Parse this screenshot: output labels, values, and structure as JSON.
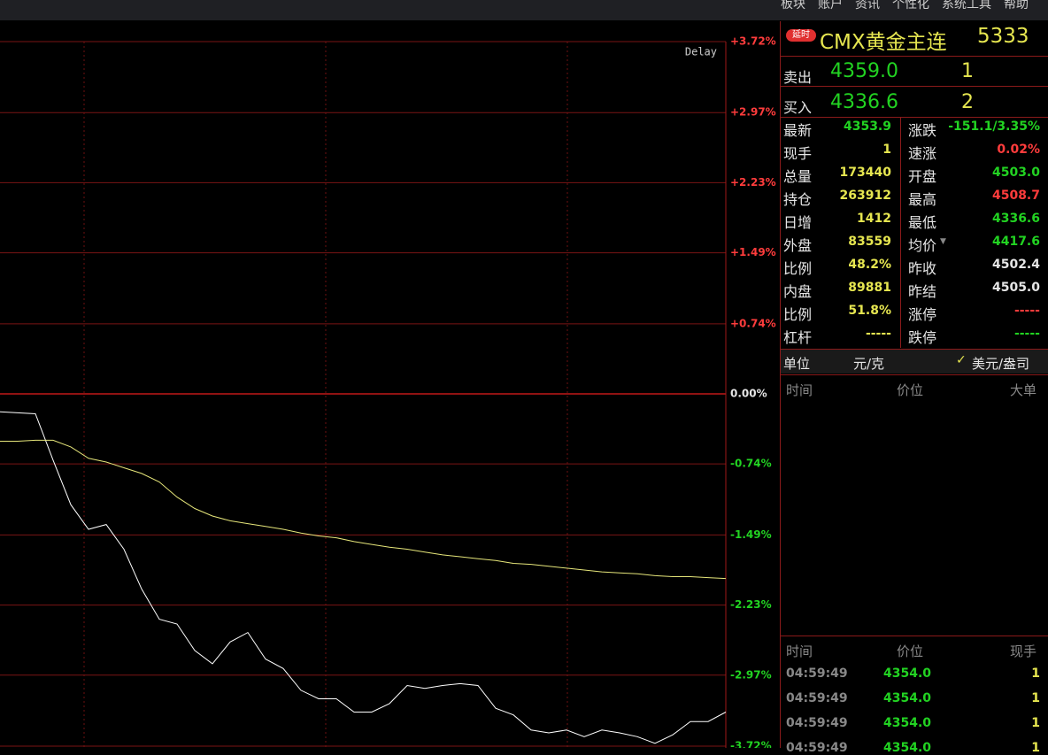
{
  "menu": [
    "板块",
    "账户",
    "资讯",
    "个性化",
    "系统工具",
    "帮助"
  ],
  "chart_data": {
    "type": "line",
    "annotation": "Delay",
    "ylim": [
      -3.72,
      3.72
    ],
    "grid": true,
    "yticks": [
      {
        "value": 3.72,
        "label": "+3.72%"
      },
      {
        "value": 2.97,
        "label": "+2.97%"
      },
      {
        "value": 2.23,
        "label": "+2.23%"
      },
      {
        "value": 1.49,
        "label": "+1.49%"
      },
      {
        "value": 0.74,
        "label": "+0.74%"
      },
      {
        "value": 0,
        "label": "0.00%"
      },
      {
        "value": -0.74,
        "label": "-0.74%"
      },
      {
        "value": -1.49,
        "label": "-1.49%"
      },
      {
        "value": -2.23,
        "label": "-2.23%"
      },
      {
        "value": -2.97,
        "label": "-2.97%"
      },
      {
        "value": -3.72,
        "label": "-3.72%"
      }
    ],
    "series": [
      {
        "color": "#ffffff",
        "values": [
          -0.19,
          -0.2,
          -0.21,
          -0.7,
          -1.17,
          -1.43,
          -1.38,
          -1.64,
          -2.06,
          -2.38,
          -2.43,
          -2.71,
          -2.85,
          -2.62,
          -2.52,
          -2.8,
          -2.9,
          -3.13,
          -3.22,
          -3.22,
          -3.36,
          -3.36,
          -3.27,
          -3.08,
          -3.11,
          -3.08,
          -3.06,
          -3.08,
          -3.32,
          -3.39,
          -3.55,
          -3.58,
          -3.55,
          -3.62,
          -3.55,
          -3.58,
          -3.62,
          -3.69,
          -3.6,
          -3.46,
          -3.46,
          -3.36
        ]
      },
      {
        "color": "#e6e67a",
        "values": [
          -0.5,
          -0.5,
          -0.49,
          -0.49,
          -0.56,
          -0.68,
          -0.72,
          -0.78,
          -0.84,
          -0.93,
          -1.09,
          -1.21,
          -1.29,
          -1.34,
          -1.37,
          -1.4,
          -1.43,
          -1.47,
          -1.5,
          -1.52,
          -1.56,
          -1.59,
          -1.62,
          -1.64,
          -1.67,
          -1.7,
          -1.72,
          -1.74,
          -1.76,
          -1.79,
          -1.8,
          -1.82,
          -1.84,
          -1.86,
          -1.88,
          -1.89,
          -1.9,
          -1.92,
          -1.93,
          -1.93,
          -1.94,
          -1.95
        ]
      }
    ]
  },
  "header": {
    "badge": "延时",
    "title": "CMX黄金主连",
    "code": "5333"
  },
  "sell": {
    "label": "卖出",
    "price": "4359.0",
    "qty": "1"
  },
  "buy": {
    "label": "买入",
    "price": "4336.6",
    "qty": "2"
  },
  "quotes": [
    [
      "最新",
      "4353.9",
      "涨跌",
      "-151.1/3.35%"
    ],
    [
      "现手",
      "1",
      "速涨",
      "0.02%"
    ],
    [
      "总量",
      "173440",
      "开盘",
      "4503.0"
    ],
    [
      "持仓",
      "263912",
      "最高",
      "4508.7"
    ],
    [
      "日增",
      "1412",
      "最低",
      "4336.6"
    ],
    [
      "外盘",
      "83559",
      "均价",
      "4417.6"
    ],
    [
      "比例",
      "48.2%",
      "昨收",
      "4502.4"
    ],
    [
      "内盘",
      "89881",
      "昨结",
      "4505.0"
    ],
    [
      "比例",
      "51.8%",
      "涨停",
      "-----"
    ],
    [
      "杠杆",
      "-----",
      "跌停",
      "-----"
    ]
  ],
  "unit": {
    "label": "单位",
    "option1": "元/克",
    "option2": "美元/盎司"
  },
  "big_orders": {
    "headers": [
      "时间",
      "价位",
      "大单"
    ]
  },
  "trades": {
    "headers": [
      "时间",
      "价位",
      "现手"
    ],
    "rows": [
      [
        "04:59:49",
        "4354.0",
        "1"
      ],
      [
        "04:59:49",
        "4354.0",
        "1"
      ],
      [
        "04:59:49",
        "4354.0",
        "1"
      ],
      [
        "04:59:49",
        "4354.0",
        "1"
      ]
    ]
  }
}
